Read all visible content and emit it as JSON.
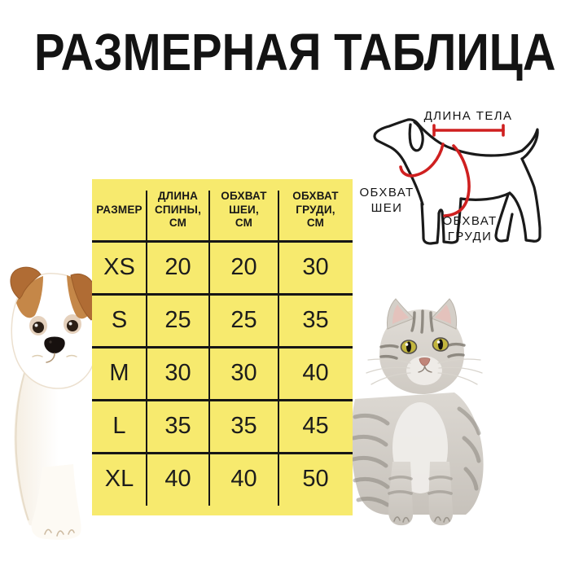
{
  "title": "РАЗМЕРНАЯ ТАБЛИЦА",
  "table": {
    "bg_color": "#f7ea6e",
    "header": [
      "РАЗМЕР",
      "ДЛИНА\nСПИНЫ,\nСМ",
      "ОБХВАТ\nШЕИ,\nСМ",
      "ОБХВАТ\nГРУДИ,\nСМ"
    ],
    "rows": [
      [
        "XS",
        "20",
        "20",
        "30"
      ],
      [
        "S",
        "25",
        "25",
        "35"
      ],
      [
        "M",
        "30",
        "30",
        "40"
      ],
      [
        "L",
        "35",
        "35",
        "45"
      ],
      [
        "XL",
        "40",
        "40",
        "50"
      ]
    ]
  },
  "diagram": {
    "accent_color": "#cf2020",
    "body_length_label": "ДЛИНА ТЕЛА",
    "neck_girth_label": "ОБХВАТ\nШЕИ",
    "chest_girth_label": "ОБХВАТ\nГРУДИ"
  },
  "photos": {
    "left": "dog-photo",
    "right": "cat-photo"
  }
}
